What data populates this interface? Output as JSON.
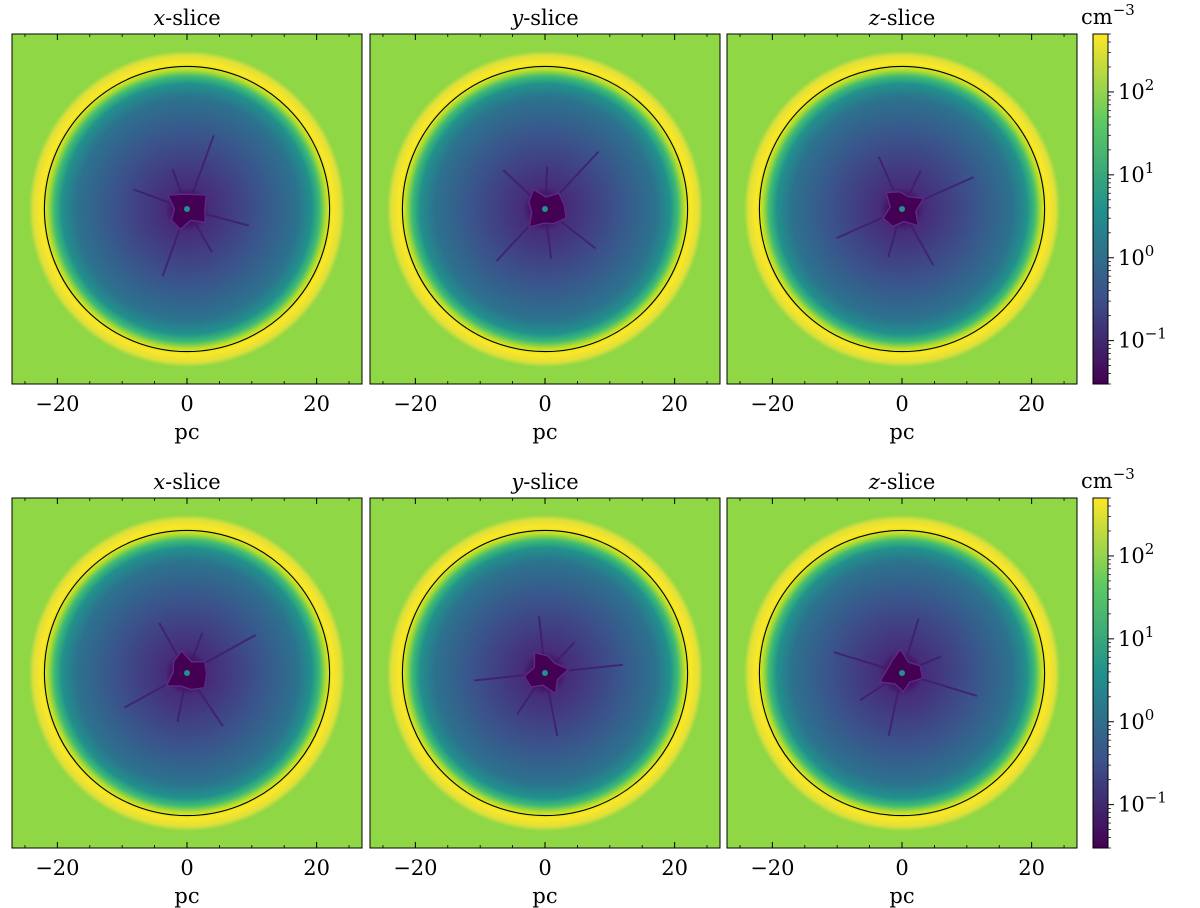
{
  "chart_data": {
    "type": "heatmap",
    "quantity_unit": "cm",
    "quantity_unit_exponent": "−3",
    "colormap": [
      "#440154",
      "#3b528b",
      "#21918c",
      "#5ec962",
      "#fde725"
    ],
    "background_color": "#8fd744",
    "shell_color": "#fde725",
    "colorbar": {
      "scale": "log",
      "range": [
        0.03,
        500
      ],
      "ticks": [
        {
          "value": 100,
          "base": "10",
          "exp": "2"
        },
        {
          "value": 10,
          "base": "10",
          "exp": "1"
        },
        {
          "value": 1,
          "base": "10",
          "exp": "0"
        },
        {
          "value": 0.1,
          "base": "10",
          "exp": "−1"
        }
      ]
    },
    "xlim": [
      -27,
      27
    ],
    "ylim": [
      -27,
      27
    ],
    "xlabel": "pc",
    "xticks": [
      {
        "value": -20,
        "label": "−20"
      },
      {
        "value": 0,
        "label": "0"
      },
      {
        "value": 20,
        "label": "20"
      }
    ],
    "circle_radius_pc": 22,
    "rows": [
      {
        "panels": [
          {
            "axis": "x",
            "title_suffix": "-slice"
          },
          {
            "axis": "y",
            "title_suffix": "-slice"
          },
          {
            "axis": "z",
            "title_suffix": "-slice"
          }
        ]
      },
      {
        "panels": [
          {
            "axis": "x",
            "title_suffix": "-slice"
          },
          {
            "axis": "y",
            "title_suffix": "-slice"
          },
          {
            "axis": "z",
            "title_suffix": "-slice"
          }
        ]
      }
    ]
  }
}
